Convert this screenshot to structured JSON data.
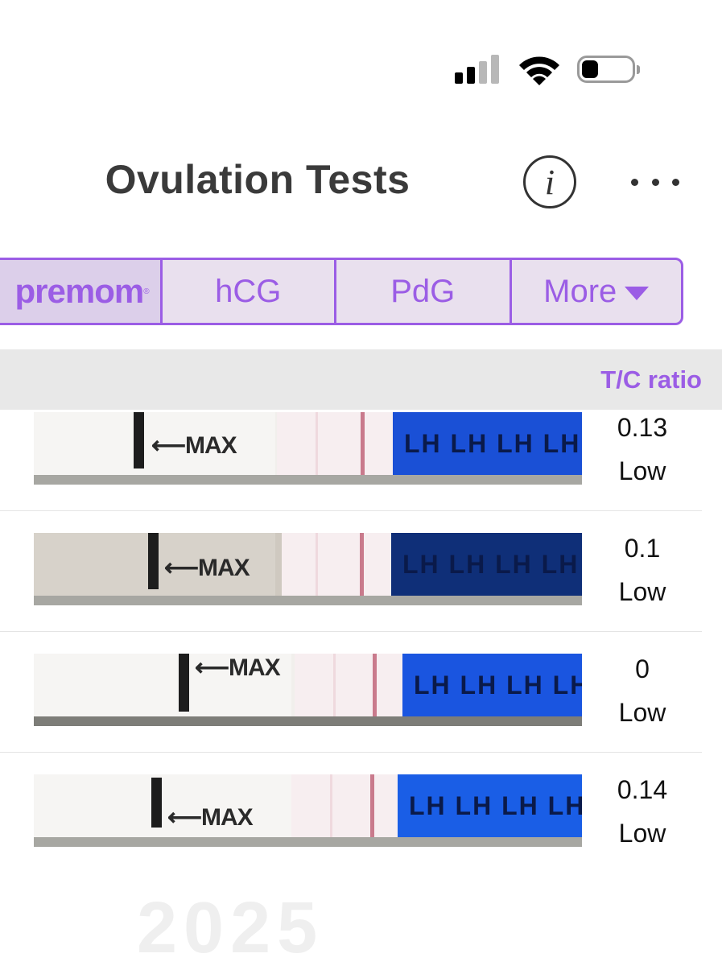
{
  "status_bar": {
    "signal_bars": 4,
    "signal_active": 2,
    "wifi": "wifi-icon",
    "battery_level": 0.2
  },
  "header": {
    "title": "Ovulation Tests",
    "info_icon": "info-icon",
    "more_icon": "ellipsis-icon"
  },
  "tabs": [
    {
      "label": "premom",
      "logo": true
    },
    {
      "label": "hCG"
    },
    {
      "label": "PdG"
    },
    {
      "label": "More",
      "dropdown": true
    }
  ],
  "colors": {
    "accent": "#9b5de5",
    "tab_bg": "#e9e0ee",
    "header_bg": "#e8e8e8",
    "strip_blue": "#1a50d6"
  },
  "table": {
    "column_header": "T/C ratio",
    "rows": [
      {
        "ratio": "0.13",
        "level": "Low",
        "strip_labels": "LH LH LH LH LH L",
        "max_label": "MAX"
      },
      {
        "ratio": "0.1",
        "level": "Low",
        "strip_labels": "LH LH LH LH LH LH",
        "max_label": "MAX"
      },
      {
        "ratio": "0",
        "level": "Low",
        "strip_labels": "LH LH LH LH LH LH",
        "max_label": "MAX"
      },
      {
        "ratio": "0.14",
        "level": "Low",
        "strip_labels": "LH LH LH LH LH LH",
        "max_label": "MAX"
      }
    ]
  },
  "footer": {
    "year_partial": "2025"
  }
}
